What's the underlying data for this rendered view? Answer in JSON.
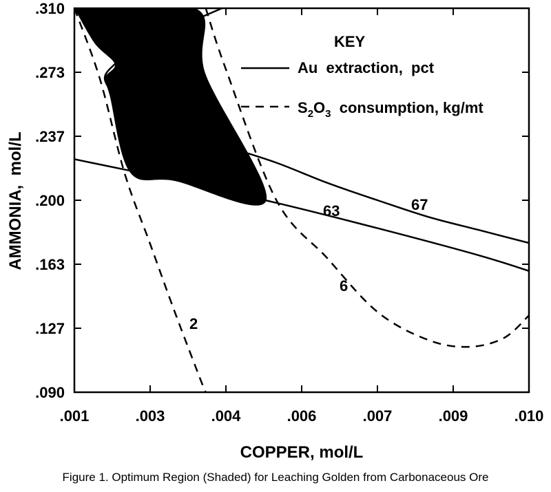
{
  "chart_data": {
    "type": "line",
    "xlabel": "COPPER, mol/L",
    "ylabel": "AMMONIA,  mol/L",
    "xlim": [
      0.001,
      0.01
    ],
    "ylim": [
      0.09,
      0.31
    ],
    "x_ticks": [
      ".001",
      ".003",
      ".004",
      ".006",
      ".007",
      ".009",
      ".010"
    ],
    "y_ticks": [
      ".310",
      ".273",
      ".237",
      ".200",
      ".163",
      ".127",
      ".090"
    ],
    "grid": false,
    "legend": {
      "title": "KEY",
      "placement": "top-right",
      "entries": [
        {
          "label_parts": [
            "Au  extraction,  pct"
          ],
          "style": "solid"
        },
        {
          "label_parts": [
            "S",
            "2",
            "O",
            "3",
            "  consumption, kg/mt"
          ],
          "style": "dashed"
        }
      ]
    },
    "series": [
      {
        "label": "63",
        "style": "solid",
        "points": [
          [
            0.001,
            0.2235
          ],
          [
            0.003,
            0.2115
          ],
          [
            0.005,
            0.1985
          ],
          [
            0.007,
            0.184
          ],
          [
            0.009,
            0.1685
          ],
          [
            0.01,
            0.1595
          ]
        ]
      },
      {
        "label": "67",
        "style": "solid",
        "points": [
          [
            0.004,
            0.311
          ],
          [
            0.0034,
            0.3035
          ],
          [
            0.0028,
            0.296
          ],
          [
            0.0022,
            0.287
          ],
          [
            0.0018,
            0.278
          ],
          [
            0.0016,
            0.27
          ],
          [
            0.0018,
            0.2605
          ],
          [
            0.0022,
            0.252
          ],
          [
            0.003,
            0.242
          ],
          [
            0.004,
            0.231
          ],
          [
            0.005,
            0.2215
          ],
          [
            0.006,
            0.21
          ],
          [
            0.007,
            0.2
          ],
          [
            0.008,
            0.1905
          ],
          [
            0.009,
            0.183
          ],
          [
            0.01,
            0.1755
          ]
        ]
      },
      {
        "label": "2",
        "style": "dashed",
        "points": [
          [
            0.001,
            0.31
          ],
          [
            0.0015,
            0.27
          ],
          [
            0.002,
            0.215
          ],
          [
            0.0025,
            0.175
          ],
          [
            0.003,
            0.135
          ],
          [
            0.0035,
            0.097
          ],
          [
            0.0036,
            0.09
          ]
        ]
      },
      {
        "label": "6",
        "style": "dashed",
        "points": [
          [
            0.0036,
            0.31
          ],
          [
            0.004,
            0.275
          ],
          [
            0.005,
            0.2
          ],
          [
            0.006,
            0.167
          ],
          [
            0.007,
            0.136
          ],
          [
            0.008,
            0.12
          ],
          [
            0.0088,
            0.116
          ],
          [
            0.0095,
            0.121
          ],
          [
            0.01,
            0.134
          ]
        ]
      }
    ],
    "shaded_region": {
      "note": "Optimum Region (Shaded)",
      "polygon": [
        [
          0.001,
          0.31
        ],
        [
          0.0034,
          0.31
        ],
        [
          0.0036,
          0.272
        ],
        [
          0.0048,
          0.2
        ],
        [
          0.003,
          0.211
        ],
        [
          0.0021,
          0.216
        ],
        [
          0.0017,
          0.26
        ],
        [
          0.0016,
          0.27
        ],
        [
          0.0018,
          0.278
        ],
        [
          0.0014,
          0.29
        ]
      ]
    }
  },
  "caption": "Figure 1.  Optimum Region (Shaded) for Leaching Golden from Carbonaceous Ore"
}
